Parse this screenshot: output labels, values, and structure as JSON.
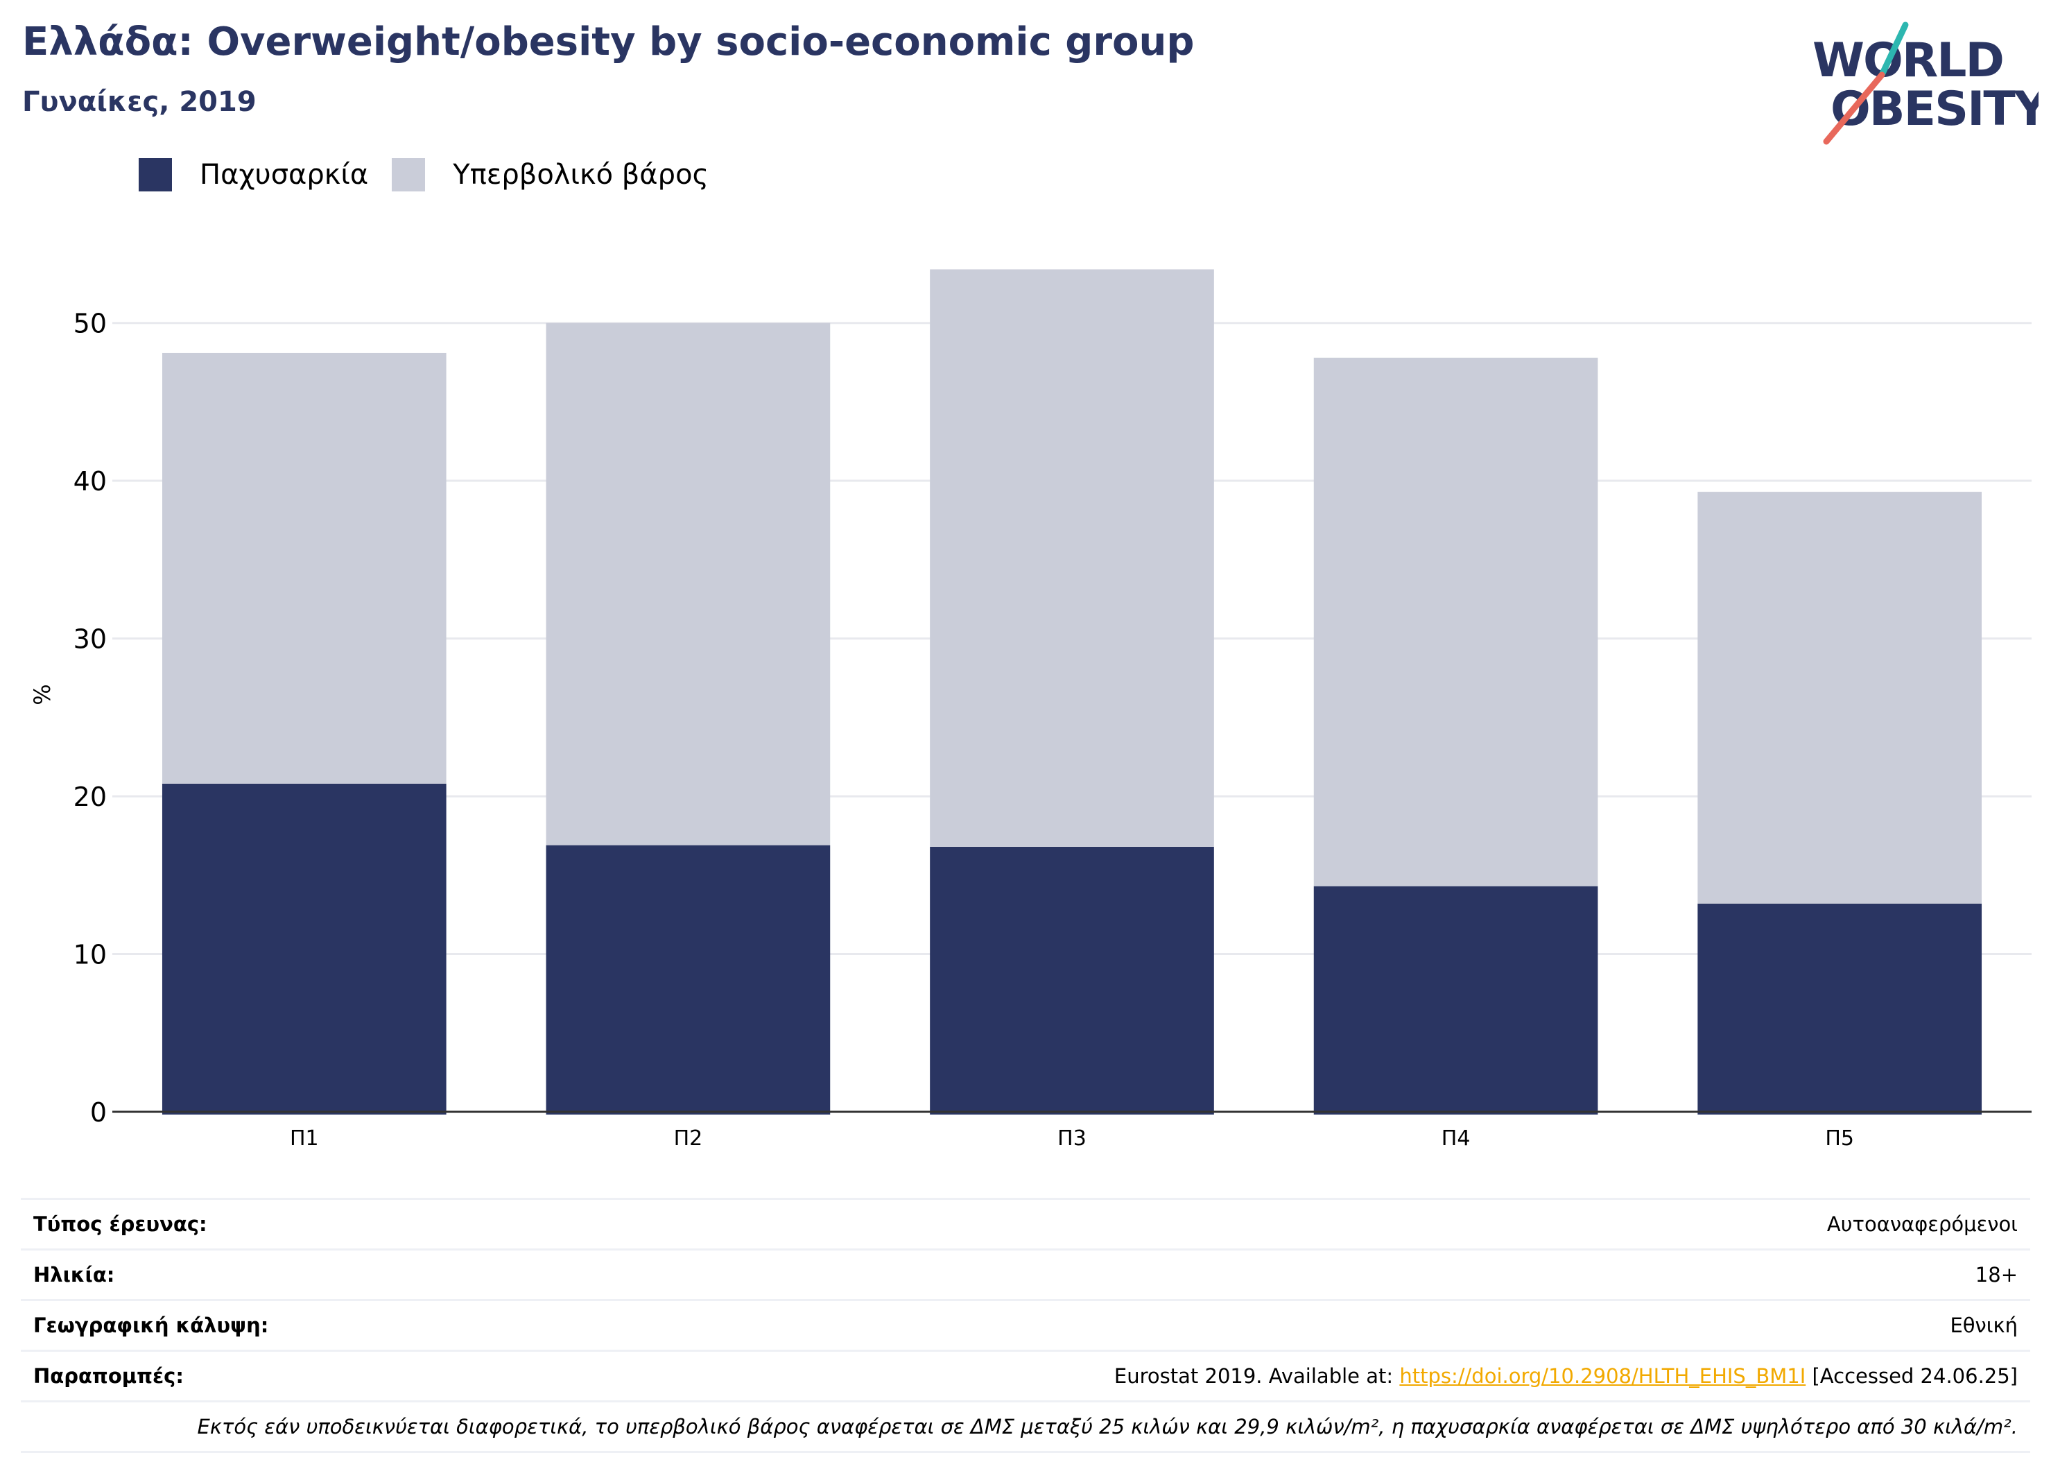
{
  "header": {
    "title": "Ελλάδα: Overweight/obesity by socio-economic group",
    "subtitle": "Γυναίκες, 2019"
  },
  "logo": {
    "line1": "WORLD",
    "line2": "OBESITY",
    "colors": {
      "text": "#2a3562",
      "slash_teal": "#2db7b0",
      "slash_coral": "#e8685b"
    }
  },
  "chart_data": {
    "type": "bar",
    "stacked": true,
    "categories": [
      "Π1",
      "Π2",
      "Π3",
      "Π4",
      "Π5"
    ],
    "series": [
      {
        "name": "Παχυσαρκία",
        "color": "#2a3562",
        "values": [
          20.8,
          16.9,
          16.8,
          14.3,
          13.2
        ]
      },
      {
        "name": "Υπερβολικό βάρος",
        "color": "#cacdd9",
        "values": [
          27.3,
          33.1,
          36.6,
          33.5,
          26.1
        ]
      }
    ],
    "yticks": [
      0,
      10,
      20,
      30,
      40,
      50
    ],
    "ylabel": "%",
    "ylim": [
      0,
      55
    ],
    "grid": true,
    "legend": "top-left"
  },
  "meta": {
    "survey_label": "Τύπος έρευνας:",
    "survey_value": "Αυτοαναφερόμενοι",
    "age_label": "Ηλικία:",
    "age_value": "18+",
    "coverage_label": "Γεωγραφική κάλυψη:",
    "coverage_value": "Εθνική",
    "refs_label": "Παραπομπές:",
    "refs_prefix": "Eurostat 2019. Available at: ",
    "refs_link": "https://doi.org/10.2908/HLTH_EHIS_BM1I",
    "refs_suffix": " [Accessed 24.06.25]",
    "note": "Εκτός εάν υποδεικνύεται διαφορετικά, το υπερβολικό βάρος αναφέρεται σε ΔΜΣ μεταξύ 25 κιλών και 29,9 κιλών/m², η παχυσαρκία αναφέρεται σε ΔΜΣ υψηλότερο από 30 κιλά/m²."
  }
}
